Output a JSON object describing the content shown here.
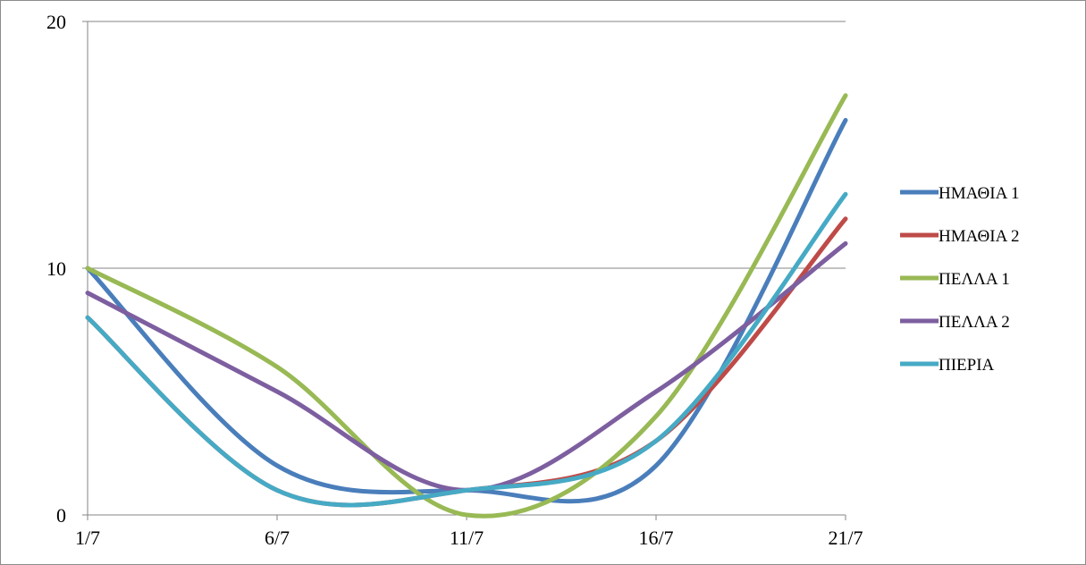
{
  "chart_data": {
    "type": "line",
    "title": "",
    "xlabel": "",
    "ylabel": "",
    "x": [
      "1/7",
      "6/7",
      "11/7",
      "16/7",
      "21/7"
    ],
    "ylim": [
      0,
      20
    ],
    "yticks": [
      0,
      10,
      20
    ],
    "grid": "horizontal",
    "smooth": true,
    "legend_position": "right",
    "series": [
      {
        "name": "ΗΜΑΘΙΑ 1",
        "color": "#4a7ebb",
        "values": [
          10,
          2,
          1,
          2,
          16
        ]
      },
      {
        "name": "ΗΜΑΘΙΑ 2",
        "color": "#be4b48",
        "values": [
          8,
          1,
          1,
          3,
          12
        ]
      },
      {
        "name": "ΠΕΛΛΑ 1",
        "color": "#98b954",
        "values": [
          10,
          6,
          0,
          4,
          17
        ]
      },
      {
        "name": "ΠΕΛΛΑ 2",
        "color": "#7d5fa0",
        "values": [
          9,
          5,
          1,
          5,
          11
        ]
      },
      {
        "name": "ΠΙΕΡΙΑ",
        "color": "#46aac5",
        "values": [
          8,
          1,
          1,
          3,
          13
        ]
      }
    ]
  }
}
